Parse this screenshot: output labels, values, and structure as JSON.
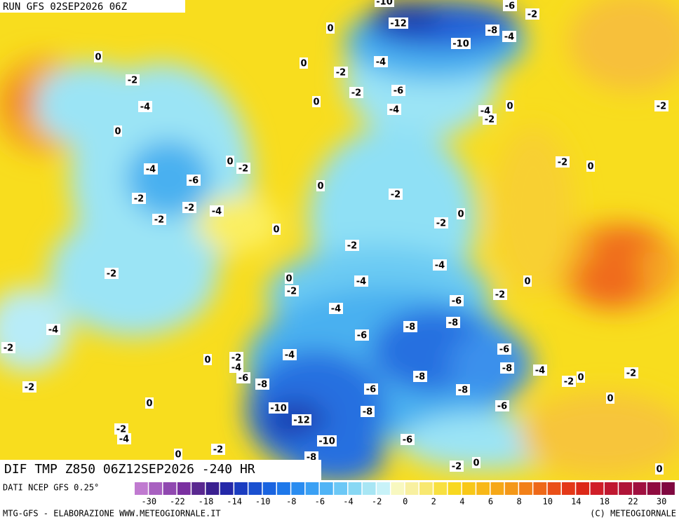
{
  "header": {
    "run": "RUN GFS 02SEP2026 06Z"
  },
  "map": {
    "title": "DIF TMP Z850 06Z12SEP2026 -240 HR",
    "contour_labels": [
      "-10",
      "-6",
      "-2",
      "0",
      "-12",
      "-8",
      "-4",
      "-10",
      "0",
      "0",
      "-2",
      "-4",
      "-2",
      "-2",
      "-6",
      "-4",
      "0",
      "-4",
      "-4",
      "-2",
      "0",
      "-2",
      "0",
      "-2",
      "0",
      "0",
      "-2",
      "-4",
      "-6",
      "0",
      "-2",
      "-2",
      "-2",
      "-4",
      "-2",
      "0",
      "-2",
      "0",
      "-2",
      "-2",
      "-4",
      "0",
      "-2",
      "-4",
      "-2",
      "0",
      "-4",
      "-6",
      "-4",
      "-6",
      "-8",
      "-8",
      "-2",
      "-6",
      "0",
      "-2",
      "-4",
      "-4",
      "-8",
      "-4",
      "-6",
      "-8",
      "0",
      "-2",
      "-2",
      "-8",
      "-2",
      "-6",
      "-8",
      "0",
      "-10",
      "-8",
      "-6",
      "-12",
      "0",
      "-2",
      "-4",
      "-6",
      "-10",
      "0",
      "-2",
      "-8",
      "-2",
      "0",
      "0"
    ]
  },
  "legend": {
    "source": "DATI NCEP GFS 0.25°",
    "labels": [
      "-30",
      "-22",
      "-18",
      "-14",
      "-10",
      "-8",
      "-6",
      "-4",
      "-2",
      "0",
      "2",
      "4",
      "6",
      "8",
      "10",
      "14",
      "18",
      "22",
      "30"
    ]
  },
  "footer": {
    "credit": "MTG-GFS - ELABORAZIONE WWW.METEOGIORNALE.IT",
    "copyright": "(C) METEOGIORNALE"
  }
}
